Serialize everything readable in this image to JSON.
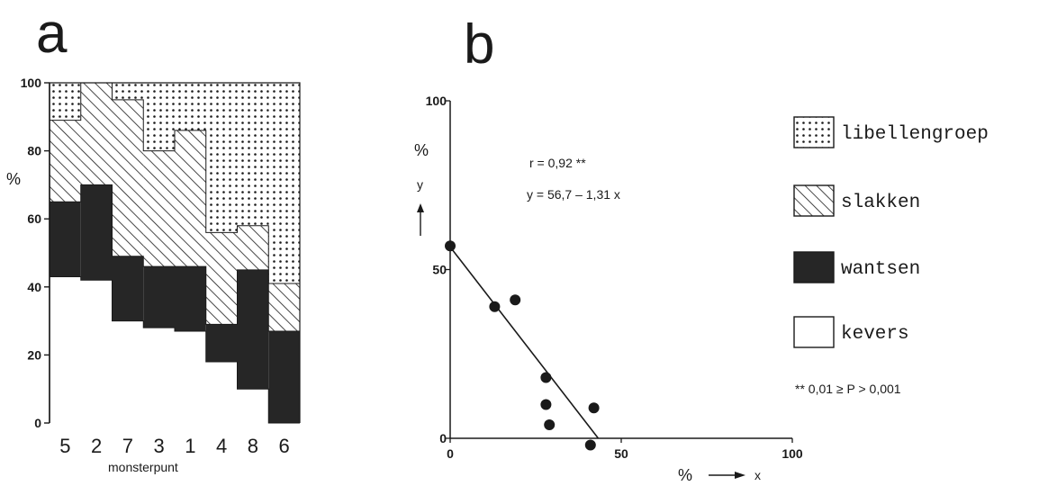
{
  "colors": {
    "ink": "#1a1a1a",
    "wantsen": "#262626",
    "paper": "#ffffff"
  },
  "panel_a_label": "a",
  "panel_b_label": "b",
  "legend": [
    {
      "label": "libellengroep",
      "pattern": "dots"
    },
    {
      "label": "slakken",
      "pattern": "hatch"
    },
    {
      "label": "wantsen",
      "pattern": "solid"
    },
    {
      "label": "kevers",
      "pattern": "empty"
    }
  ],
  "significance_note": "** 0,01 ≥ P > 0,001",
  "chart_data": [
    {
      "type": "bar",
      "stacked": true,
      "ylabel": "%",
      "xlabel": "monsterpunt",
      "ylim": [
        0,
        100
      ],
      "yticks": [
        0,
        20,
        40,
        60,
        80,
        100
      ],
      "categories": [
        "5",
        "2",
        "7",
        "3",
        "1",
        "4",
        "8",
        "6"
      ],
      "series": [
        {
          "name": "kevers",
          "pattern": "empty",
          "values": [
            43,
            42,
            30,
            28,
            27,
            18,
            10,
            0
          ]
        },
        {
          "name": "wantsen",
          "pattern": "solid",
          "values": [
            22,
            28,
            19,
            18,
            19,
            11,
            35,
            27
          ]
        },
        {
          "name": "slakken",
          "pattern": "hatch",
          "values": [
            24,
            30,
            46,
            34,
            40,
            27,
            13,
            14
          ]
        },
        {
          "name": "libellengroep",
          "pattern": "dots",
          "values": [
            11,
            0,
            5,
            20,
            14,
            44,
            42,
            59
          ]
        }
      ]
    },
    {
      "type": "scatter",
      "xlabel": "%",
      "ylabel": "%",
      "x_var": "x",
      "y_var": "y",
      "xlim": [
        0,
        100
      ],
      "ylim": [
        0,
        100
      ],
      "xticks": [
        0,
        50,
        100
      ],
      "yticks": [
        0,
        50,
        100
      ],
      "points": [
        {
          "x": 0,
          "y": 57
        },
        {
          "x": 13,
          "y": 39
        },
        {
          "x": 19,
          "y": 41
        },
        {
          "x": 28,
          "y": 18
        },
        {
          "x": 28,
          "y": 10
        },
        {
          "x": 29,
          "y": 4
        },
        {
          "x": 42,
          "y": 9
        },
        {
          "x": 41,
          "y": -2
        }
      ],
      "regression": {
        "intercept": 56.7,
        "slope": -1.31
      },
      "annotations": [
        "r = 0,92 **",
        "y = 56,7 – 1,31 x"
      ]
    }
  ]
}
